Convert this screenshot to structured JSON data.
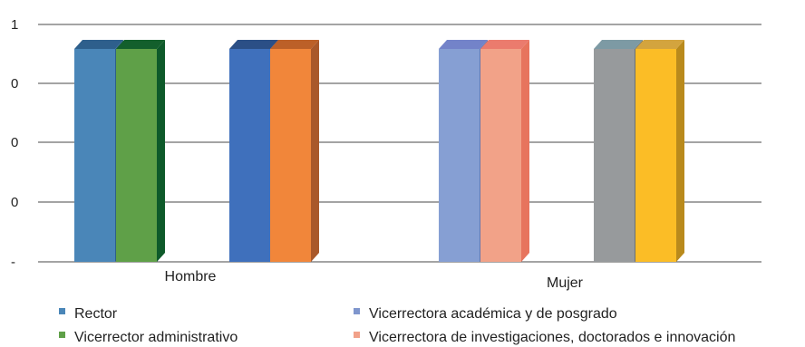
{
  "chart_data": {
    "type": "bar",
    "style": "3d-clustered-column",
    "y_tick_labels": [
      "1",
      "0",
      "0",
      "0",
      "-"
    ],
    "ylim": [
      0,
      1
    ],
    "grid": true,
    "legend_position": "bottom",
    "groups": [
      {
        "category": "Hombre",
        "bars": [
          {
            "series": "Rector",
            "value": 1
          },
          {
            "series": "Vicerrector administrativo",
            "value": 1
          },
          {
            "value": 1
          },
          {
            "value": 1
          }
        ]
      },
      {
        "category": "Mujer",
        "bars": [
          {
            "series": "Vicerrectora académica y de posgrado",
            "value": 1
          },
          {
            "series": "Vicerrectora de investigaciones, doctorados e innovación",
            "value": 1
          },
          {
            "value": 1
          },
          {
            "value": 1
          }
        ]
      }
    ],
    "legend": [
      {
        "name": "Rector",
        "color": "#4a86b8"
      },
      {
        "name": "Vicerrectora académica y de posgrado",
        "color": "#7f96cd"
      },
      {
        "name": "Vicerrector administrativo",
        "color": "#5fa048"
      },
      {
        "name": "Vicerrectora de investigaciones, doctorados e innovación",
        "color": "#f1a189"
      }
    ],
    "colors": {
      "hombre": [
        {
          "front": "#4a86b8",
          "side": "#2d5f8a",
          "top": "#2e5f8c"
        },
        {
          "front": "#5fa048",
          "side": "#0e5a2a",
          "top": "#135f2c"
        },
        {
          "front": "#3f70bc",
          "side": "#294f8a",
          "top": "#2b4f86"
        },
        {
          "front": "#f1863a",
          "side": "#a9582a",
          "top": "#bc6028"
        }
      ],
      "mujer": [
        {
          "front": "#869fd3",
          "side": "#6177b0",
          "top": "#7383c9"
        },
        {
          "front": "#f2a288",
          "side": "#e7745d",
          "top": "#eb7b6d"
        },
        {
          "front": "#979a9c",
          "side": "#6c7173",
          "top": "#7d9aa4"
        },
        {
          "front": "#fbbd26",
          "side": "#b98a1c",
          "top": "#d3a43e"
        }
      ]
    }
  }
}
